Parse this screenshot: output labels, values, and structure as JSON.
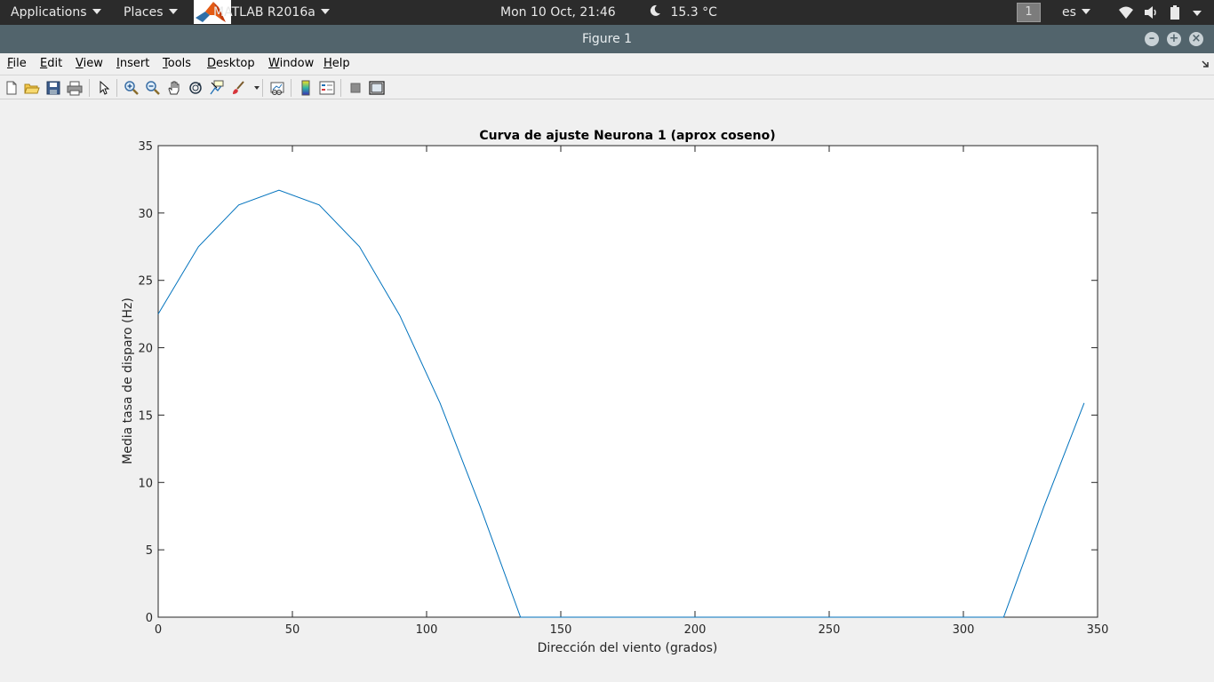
{
  "top_panel": {
    "applications_label": "Applications",
    "places_label": "Places",
    "app_label": "MATLAB R2016a",
    "datetime": "Mon 10 Oct, 21:46",
    "weather": "15.3 °C",
    "workspace": "1",
    "language": "es"
  },
  "window": {
    "title": "Figure 1"
  },
  "menu": {
    "items": [
      {
        "first": "F",
        "rest": "ile"
      },
      {
        "first": "E",
        "rest": "dit"
      },
      {
        "first": "V",
        "rest": "iew"
      },
      {
        "first": "I",
        "rest": "nsert"
      },
      {
        "first": "T",
        "rest": "ools"
      },
      {
        "first": "D",
        "rest": "esktop"
      },
      {
        "first": "W",
        "rest": "indow"
      },
      {
        "first": "H",
        "rest": "elp"
      }
    ]
  },
  "toolbar": {
    "icons": [
      "new-figure-icon",
      "open-file-icon",
      "save-icon",
      "print-icon",
      "edit-plot-arrow-icon",
      "zoom-in-icon",
      "zoom-out-icon",
      "pan-hand-icon",
      "rotate-3d-icon",
      "data-cursor-icon",
      "brush-icon",
      "link-plot-icon",
      "colorbar-icon",
      "legend-icon",
      "hide-plot-tools-icon",
      "show-plot-tools-icon"
    ]
  },
  "chart_data": {
    "type": "line",
    "title": "Curva de ajuste Neurona 1 (aprox coseno)",
    "xlabel": "Dirección del viento (grados)",
    "ylabel": "Media tasa de disparo (Hz)",
    "xlim": [
      0,
      350
    ],
    "ylim": [
      0,
      35
    ],
    "xticks": [
      0,
      50,
      100,
      150,
      200,
      250,
      300,
      350
    ],
    "yticks": [
      0,
      5,
      10,
      15,
      20,
      25,
      30,
      35
    ],
    "grid": false,
    "line_color": "#0072bd",
    "x": [
      0,
      15,
      30,
      45,
      60,
      75,
      90,
      105,
      120,
      135,
      150,
      165,
      180,
      195,
      210,
      225,
      240,
      255,
      270,
      285,
      300,
      315,
      330,
      345
    ],
    "y": [
      22.5,
      27.5,
      30.6,
      31.7,
      30.6,
      27.5,
      22.4,
      15.9,
      8.2,
      0,
      0,
      0,
      0,
      0,
      0,
      0,
      0,
      0,
      0,
      0,
      0,
      0,
      8.2,
      15.9
    ]
  }
}
